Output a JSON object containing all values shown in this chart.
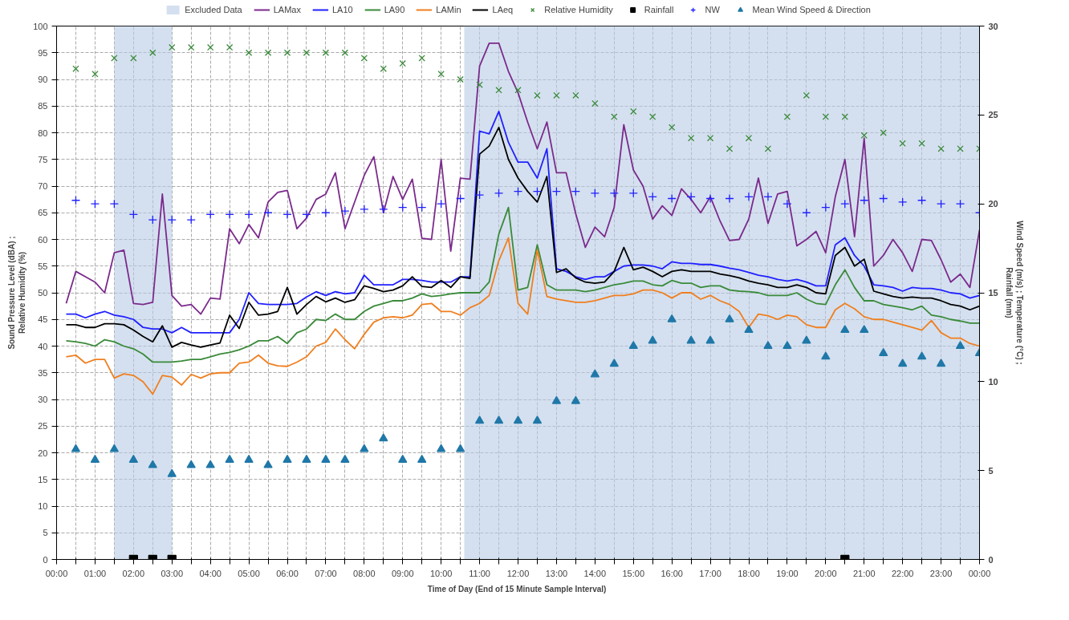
{
  "chart_data": {
    "type": "line",
    "xlabel": "Time of Day (End of 15 Minute  Sample Interval)",
    "ylabel": "Sound Pressure Level (dBA) ;\nRelative Humidity (%)",
    "y2label": "Wind Speed (m/s) ; Temperature (°C) ;\nRainfall (mm)",
    "xlim": [
      0,
      24
    ],
    "ylim": [
      0,
      100
    ],
    "y2lim": [
      0,
      30
    ],
    "xticks": [
      {
        "value": 0,
        "label": "00:00"
      },
      {
        "value": 0.5,
        "label": null
      },
      {
        "value": 1,
        "label": "01:00"
      },
      {
        "value": 1.5,
        "label": null
      },
      {
        "value": 2,
        "label": "02:00"
      },
      {
        "value": 2.5,
        "label": null
      },
      {
        "value": 3,
        "label": "03:00"
      },
      {
        "value": 3.5,
        "label": null
      },
      {
        "value": 4,
        "label": "04:00"
      },
      {
        "value": 4.5,
        "label": null
      },
      {
        "value": 5,
        "label": "05:00"
      },
      {
        "value": 5.5,
        "label": null
      },
      {
        "value": 6,
        "label": "06:00"
      },
      {
        "value": 6.5,
        "label": null
      },
      {
        "value": 7,
        "label": "07:00"
      },
      {
        "value": 7.5,
        "label": null
      },
      {
        "value": 8,
        "label": "08:00"
      },
      {
        "value": 8.5,
        "label": null
      },
      {
        "value": 9,
        "label": "09:00"
      },
      {
        "value": 9.5,
        "label": null
      },
      {
        "value": 10,
        "label": "10:00"
      },
      {
        "value": 10.5,
        "label": null
      },
      {
        "value": 11,
        "label": "11:00"
      },
      {
        "value": 11.5,
        "label": null
      },
      {
        "value": 12,
        "label": "12:00"
      },
      {
        "value": 12.5,
        "label": null
      },
      {
        "value": 13,
        "label": "13:00"
      },
      {
        "value": 13.5,
        "label": null
      },
      {
        "value": 14,
        "label": "14:00"
      },
      {
        "value": 14.5,
        "label": null
      },
      {
        "value": 15,
        "label": "15:00"
      },
      {
        "value": 15.5,
        "label": null
      },
      {
        "value": 16,
        "label": "16:00"
      },
      {
        "value": 16.5,
        "label": null
      },
      {
        "value": 17,
        "label": "17:00"
      },
      {
        "value": 17.5,
        "label": null
      },
      {
        "value": 18,
        "label": "18:00"
      },
      {
        "value": 18.5,
        "label": null
      },
      {
        "value": 19,
        "label": "19:00"
      },
      {
        "value": 19.5,
        "label": null
      },
      {
        "value": 20,
        "label": "20:00"
      },
      {
        "value": 20.5,
        "label": null
      },
      {
        "value": 21,
        "label": "21:00"
      },
      {
        "value": 21.5,
        "label": null
      },
      {
        "value": 22,
        "label": "22:00"
      },
      {
        "value": 22.5,
        "label": null
      },
      {
        "value": 23,
        "label": "23:00"
      },
      {
        "value": 23.5,
        "label": null
      },
      {
        "value": 24,
        "label": "00:00"
      }
    ],
    "yticks": [
      0,
      5,
      10,
      15,
      20,
      25,
      30,
      35,
      40,
      45,
      50,
      55,
      60,
      65,
      70,
      75,
      80,
      85,
      90,
      95,
      100
    ],
    "y2ticks": [
      0,
      5,
      10,
      15,
      20,
      25,
      30
    ],
    "grid": true,
    "legend": "top",
    "bands": [
      {
        "axis": "x",
        "from": 1.5,
        "to": 3.0,
        "label": "Excluded Data",
        "color": "#b8cce4"
      },
      {
        "axis": "x",
        "from": 10.6,
        "to": 24,
        "color": "#b8cce4"
      }
    ],
    "series": [
      {
        "name": "LAMax",
        "color": "#7b2a8c",
        "x": [
          0.25,
          0.5,
          0.75,
          1,
          1.25,
          1.5,
          1.75,
          2,
          2.25,
          2.5,
          2.75,
          3,
          3.25,
          3.5,
          3.75,
          4,
          4.25,
          4.5,
          4.75,
          5,
          5.25,
          5.5,
          5.75,
          6,
          6.25,
          6.5,
          6.75,
          7,
          7.25,
          7.5,
          7.75,
          8,
          8.25,
          8.5,
          8.75,
          9,
          9.25,
          9.5,
          9.75,
          10,
          10.25,
          10.5,
          10.75,
          11,
          11.25,
          11.5,
          11.75,
          12,
          12.25,
          12.5,
          12.75,
          13,
          13.25,
          13.5,
          13.75,
          14,
          14.25,
          14.5,
          14.75,
          15,
          15.25,
          15.5,
          15.75,
          16,
          16.25,
          16.5,
          16.75,
          17,
          17.25,
          17.5,
          17.75,
          18,
          18.25,
          18.5,
          18.75,
          19,
          19.25,
          19.5,
          19.75,
          20,
          20.25,
          20.5,
          20.75,
          21,
          21.25,
          21.5,
          21.75,
          22,
          22.25,
          22.5,
          22.75,
          23,
          23.25,
          23.5,
          23.75,
          24
        ],
        "values": [
          48,
          54,
          53,
          52,
          50,
          57.5,
          58,
          48,
          47.8,
          48.2,
          68.5,
          49.5,
          47.5,
          47.8,
          46,
          49,
          48.8,
          62,
          59.2,
          62.8,
          60.3,
          67,
          68.8,
          69.2,
          62,
          64,
          67.5,
          68.5,
          72.5,
          62,
          67,
          72,
          75.5,
          65,
          71.8,
          67.5,
          71.3,
          60.2,
          60,
          75,
          57.8,
          71.5,
          71.3,
          92.5,
          96.8,
          96.8,
          91.5,
          87.5,
          82,
          77,
          82,
          72.5,
          72.5,
          64.8,
          58.5,
          62.3,
          60.5,
          66,
          81.5,
          73,
          70,
          63.8,
          66.3,
          64.5,
          69.5,
          67.5,
          65,
          68,
          63.5,
          59.8,
          60,
          63.8,
          71.5,
          63,
          68.5,
          69,
          58.8,
          60,
          61.5,
          57.5,
          68,
          75,
          60.5,
          79,
          55,
          57,
          60,
          57.5,
          54,
          60,
          59.8,
          56.2,
          52,
          53.5,
          51,
          61.8
        ]
      },
      {
        "name": "LA10",
        "color": "#2020ff",
        "x": [
          0.25,
          0.5,
          0.75,
          1,
          1.25,
          1.5,
          1.75,
          2,
          2.25,
          2.5,
          2.75,
          3,
          3.25,
          3.5,
          3.75,
          4,
          4.25,
          4.5,
          4.75,
          5,
          5.25,
          5.5,
          5.75,
          6,
          6.25,
          6.5,
          6.75,
          7,
          7.25,
          7.5,
          7.75,
          8,
          8.25,
          8.5,
          8.75,
          9,
          9.25,
          9.5,
          9.75,
          10,
          10.25,
          10.5,
          10.75,
          11,
          11.25,
          11.5,
          11.75,
          12,
          12.25,
          12.5,
          12.75,
          13,
          13.25,
          13.5,
          13.75,
          14,
          14.25,
          14.5,
          14.75,
          15,
          15.25,
          15.5,
          15.75,
          16,
          16.25,
          16.5,
          16.75,
          17,
          17.25,
          17.5,
          17.75,
          18,
          18.25,
          18.5,
          18.75,
          19,
          19.25,
          19.5,
          19.75,
          20,
          20.25,
          20.5,
          20.75,
          21,
          21.25,
          21.5,
          21.75,
          22,
          22.25,
          22.5,
          22.75,
          23,
          23.25,
          23.5,
          23.75,
          24
        ],
        "values": [
          46,
          46,
          45.3,
          46,
          46.5,
          45.8,
          45.5,
          45,
          43.5,
          43.2,
          43.2,
          42.5,
          43.5,
          42.5,
          42.5,
          42.5,
          42.5,
          42.5,
          45,
          50,
          48,
          47.8,
          47.8,
          47.8,
          48,
          49.2,
          50.2,
          49.5,
          50.2,
          49.8,
          50,
          53.3,
          51.5,
          51.5,
          51.5,
          52.5,
          52.5,
          52.3,
          52,
          52,
          52,
          53,
          53,
          80.3,
          79.8,
          84,
          78.2,
          74.5,
          74.5,
          71.5,
          77,
          54.5,
          54,
          53,
          52.5,
          53,
          53,
          54,
          55,
          55.2,
          55.2,
          55,
          54.5,
          55.8,
          55.5,
          55.5,
          55.3,
          55.3,
          55,
          54.6,
          54.3,
          53.8,
          53.3,
          53,
          52.5,
          52.2,
          52.5,
          52,
          51.3,
          51.3,
          59,
          60.3,
          57,
          55,
          51.5,
          51.3,
          51,
          50.3,
          51,
          50.8,
          50.8,
          50.5,
          50,
          49.8,
          49,
          49.5
        ]
      },
      {
        "name": "LA90",
        "color": "#3a8a3a",
        "x": [
          0.25,
          0.5,
          0.75,
          1,
          1.25,
          1.5,
          1.75,
          2,
          2.25,
          2.5,
          2.75,
          3,
          3.25,
          3.5,
          3.75,
          4,
          4.25,
          4.5,
          4.75,
          5,
          5.25,
          5.5,
          5.75,
          6,
          6.25,
          6.5,
          6.75,
          7,
          7.25,
          7.5,
          7.75,
          8,
          8.25,
          8.5,
          8.75,
          9,
          9.25,
          9.5,
          9.75,
          10,
          10.25,
          10.5,
          10.75,
          11,
          11.25,
          11.5,
          11.75,
          12,
          12.25,
          12.5,
          12.75,
          13,
          13.25,
          13.5,
          13.75,
          14,
          14.25,
          14.5,
          14.75,
          15,
          15.25,
          15.5,
          15.75,
          16,
          16.25,
          16.5,
          16.75,
          17,
          17.25,
          17.5,
          17.75,
          18,
          18.25,
          18.5,
          18.75,
          19,
          19.25,
          19.5,
          19.75,
          20,
          20.25,
          20.5,
          20.75,
          21,
          21.25,
          21.5,
          21.75,
          22,
          22.25,
          22.5,
          22.75,
          23,
          23.25,
          23.5,
          23.75,
          24
        ],
        "values": [
          41,
          40.8,
          40.5,
          40,
          41.2,
          40.8,
          40,
          39.5,
          38.5,
          37,
          37,
          37,
          37.2,
          37.5,
          37.5,
          38,
          38.5,
          38.8,
          39.3,
          40,
          41,
          41,
          41.8,
          40.5,
          42.5,
          43.2,
          45,
          44.8,
          46,
          45,
          45,
          46.5,
          47.5,
          48,
          48.5,
          48.5,
          49,
          49.8,
          49.3,
          49.5,
          49.8,
          50,
          50,
          50,
          52,
          61,
          66,
          50.5,
          51,
          59,
          51.5,
          50.5,
          50.5,
          50.5,
          50.2,
          50.5,
          51,
          51.5,
          51.8,
          52.2,
          52.2,
          51.5,
          51.3,
          52.3,
          51.8,
          51.8,
          51,
          51.3,
          51.3,
          50.5,
          50.3,
          50.2,
          50,
          49.5,
          49.5,
          49.5,
          50,
          48.8,
          48,
          47.8,
          51.5,
          54.3,
          51,
          48.5,
          48.5,
          47.8,
          47.5,
          47.2,
          46.8,
          47.5,
          45.8,
          45.5,
          45,
          44.7,
          44.3,
          44.3
        ]
      },
      {
        "name": "LAMin",
        "color": "#f07f1f",
        "x": [
          0.25,
          0.5,
          0.75,
          1,
          1.25,
          1.5,
          1.75,
          2,
          2.25,
          2.5,
          2.75,
          3,
          3.25,
          3.5,
          3.75,
          4,
          4.25,
          4.5,
          4.75,
          5,
          5.25,
          5.5,
          5.75,
          6,
          6.25,
          6.5,
          6.75,
          7,
          7.25,
          7.5,
          7.75,
          8,
          8.25,
          8.5,
          8.75,
          9,
          9.25,
          9.5,
          9.75,
          10,
          10.25,
          10.5,
          10.75,
          11,
          11.25,
          11.5,
          11.75,
          12,
          12.25,
          12.5,
          12.75,
          13,
          13.25,
          13.5,
          13.75,
          14,
          14.25,
          14.5,
          14.75,
          15,
          15.25,
          15.5,
          15.75,
          16,
          16.25,
          16.5,
          16.75,
          17,
          17.25,
          17.5,
          17.75,
          18,
          18.25,
          18.5,
          18.75,
          19,
          19.25,
          19.5,
          19.75,
          20,
          20.25,
          20.5,
          20.75,
          21,
          21.25,
          21.5,
          21.75,
          22,
          22.25,
          22.5,
          22.75,
          23,
          23.25,
          23.5,
          23.75,
          24
        ],
        "values": [
          38,
          38.3,
          36.8,
          37.5,
          37.5,
          34,
          34.8,
          34.5,
          33.3,
          31,
          34.5,
          34.2,
          32.7,
          34.7,
          34,
          34.8,
          35,
          35,
          36.8,
          37,
          38.3,
          36.8,
          36.3,
          36.2,
          37,
          38,
          40,
          40.7,
          43.2,
          41.2,
          39.5,
          42.2,
          44.5,
          45.3,
          45.5,
          45.3,
          45.8,
          47.8,
          48,
          46.5,
          46.5,
          45.8,
          47.2,
          48,
          49.5,
          56,
          60.3,
          48,
          46,
          58,
          49.3,
          48.8,
          48.5,
          48.2,
          48.2,
          48.5,
          49,
          49.5,
          49.5,
          49.8,
          50.5,
          50.5,
          50,
          49,
          50,
          50,
          48.8,
          49.5,
          48.5,
          47.8,
          46.5,
          43.5,
          46,
          45.7,
          45,
          45.8,
          45.5,
          44,
          43.5,
          43.5,
          46.8,
          48,
          47,
          45.5,
          45,
          45,
          44.5,
          44,
          43.5,
          43,
          44.8,
          42.5,
          41.5,
          41.5,
          40.5,
          40
        ]
      },
      {
        "name": "LAeq",
        "color": "#000000",
        "x": [
          0.25,
          0.5,
          0.75,
          1,
          1.25,
          1.5,
          1.75,
          2,
          2.25,
          2.5,
          2.75,
          3,
          3.25,
          3.5,
          3.75,
          4,
          4.25,
          4.5,
          4.75,
          5,
          5.25,
          5.5,
          5.75,
          6,
          6.25,
          6.5,
          6.75,
          7,
          7.25,
          7.5,
          7.75,
          8,
          8.25,
          8.5,
          8.75,
          9,
          9.25,
          9.5,
          9.75,
          10,
          10.25,
          10.5,
          10.75,
          11,
          11.25,
          11.5,
          11.75,
          12,
          12.25,
          12.5,
          12.75,
          13,
          13.25,
          13.5,
          13.75,
          14,
          14.25,
          14.5,
          14.75,
          15,
          15.25,
          15.5,
          15.75,
          16,
          16.25,
          16.5,
          16.75,
          17,
          17.25,
          17.5,
          17.75,
          18,
          18.25,
          18.5,
          18.75,
          19,
          19.25,
          19.5,
          19.75,
          20,
          20.25,
          20.5,
          20.75,
          21,
          21.25,
          21.5,
          21.75,
          22,
          22.25,
          22.5,
          22.75,
          23,
          23.25,
          23.5,
          23.75,
          24
        ],
        "values": [
          44,
          44,
          43.5,
          43.5,
          44.2,
          44.2,
          44,
          43,
          41.8,
          40.8,
          43.8,
          39.8,
          40.7,
          40.2,
          39.8,
          40.2,
          40.6,
          45.8,
          43.3,
          48.2,
          45.8,
          46,
          46.5,
          51,
          46,
          47.8,
          49.3,
          48.3,
          49,
          48.2,
          48.7,
          51.3,
          50.8,
          50.2,
          50.5,
          51.3,
          53,
          51.2,
          51,
          52.3,
          51,
          53,
          52.7,
          76,
          77.5,
          81,
          75,
          71.5,
          69,
          67,
          71.8,
          53.8,
          54.5,
          52.8,
          52,
          51.8,
          52,
          54,
          58.5,
          54.3,
          54.8,
          54,
          53,
          54,
          54.3,
          54,
          54,
          54,
          53.5,
          53.2,
          52.8,
          52.2,
          51.8,
          51.5,
          51,
          51,
          51.5,
          51,
          50,
          49.8,
          57,
          58.5,
          55,
          56.3,
          50.3,
          49.8,
          49.3,
          49,
          49.2,
          49,
          49,
          48.5,
          47.8,
          47.5,
          46.8,
          47.5
        ]
      },
      {
        "name": "Relative Humidity",
        "type": "scatter",
        "marker": "cross",
        "color": "#3a8a3a",
        "x": [
          0.5,
          1,
          1.5,
          2,
          2.5,
          3,
          3.5,
          4,
          4.5,
          5,
          5.5,
          6,
          6.5,
          7,
          7.5,
          8,
          8.5,
          9,
          9.5,
          10,
          10.5,
          11,
          11.5,
          12,
          12.5,
          13,
          13.5,
          14,
          14.5,
          15,
          15.5,
          16,
          16.5,
          17,
          17.5,
          18,
          18.5,
          19,
          19.5,
          20,
          20.5,
          21,
          21.5,
          22,
          22.5,
          23,
          23.5,
          24
        ],
        "values": [
          92,
          91,
          94,
          94,
          95,
          96,
          96,
          96,
          96,
          95,
          95,
          95,
          95,
          95,
          95,
          94,
          92,
          93,
          94,
          91,
          90,
          89,
          88,
          88,
          87,
          87,
          87,
          85.5,
          83,
          84,
          83,
          81,
          79,
          79,
          77,
          79,
          77,
          83,
          87,
          83,
          83,
          79.5,
          80,
          78,
          78,
          77,
          77,
          77
        ]
      },
      {
        "name": "Rainfall",
        "type": "scatter",
        "marker": "square",
        "axis": "y2",
        "color": "#000000",
        "x": [
          2,
          2.5,
          3,
          20.5
        ],
        "values": [
          0,
          0,
          0,
          0
        ]
      },
      {
        "name": "NW",
        "type": "scatter",
        "marker": "plus",
        "axis": "y2",
        "color": "#2020ff",
        "x": [
          0.5,
          1,
          1.5,
          2,
          2.5,
          3,
          3.5,
          4,
          4.5,
          5,
          5.5,
          6,
          6.5,
          7,
          7.5,
          8,
          8.5,
          9,
          9.5,
          10,
          10.5,
          11,
          11.5,
          12,
          12.5,
          13,
          13.5,
          14,
          14.5,
          15,
          15.5,
          16,
          16.5,
          17,
          17.5,
          18,
          18.5,
          19,
          19.5,
          20,
          20.5,
          21,
          21.5,
          22,
          22.5,
          23,
          23.5,
          24
        ],
        "values": [
          20.2,
          20,
          20,
          19.4,
          19.1,
          19.1,
          19.1,
          19.4,
          19.4,
          19.4,
          19.5,
          19.4,
          19.4,
          19.5,
          19.6,
          19.7,
          19.7,
          19.8,
          19.8,
          20,
          20.3,
          20.5,
          20.6,
          20.7,
          20.7,
          20.7,
          20.7,
          20.6,
          20.6,
          20.6,
          20.4,
          20.3,
          20.4,
          20.3,
          20.3,
          20.4,
          20.4,
          20,
          19.5,
          19.8,
          20,
          20.2,
          20.3,
          20.1,
          20.2,
          20,
          20,
          19.5
        ]
      },
      {
        "name": "Mean Wind Speed & Direction",
        "type": "scatter",
        "marker": "triangle",
        "axis": "y2",
        "color": "#1f78a8",
        "x": [
          0.5,
          1,
          1.5,
          2,
          2.5,
          3,
          3.5,
          4,
          4.5,
          5,
          5.5,
          6,
          6.5,
          7,
          7.5,
          8,
          8.5,
          9,
          9.5,
          10,
          10.5,
          11,
          11.5,
          12,
          12.5,
          13,
          13.5,
          14,
          14.5,
          15,
          15.5,
          16,
          16.5,
          17,
          17.5,
          18,
          18.5,
          19,
          19.5,
          20,
          20.5,
          21,
          21.5,
          22,
          22.5,
          23,
          23.5,
          24
        ],
        "values": [
          6.2,
          5.6,
          6.2,
          5.6,
          5.3,
          4.8,
          5.3,
          5.3,
          5.6,
          5.6,
          5.3,
          5.6,
          5.6,
          5.6,
          5.6,
          6.2,
          6.8,
          5.6,
          5.6,
          6.2,
          6.2,
          7.8,
          7.8,
          7.8,
          7.8,
          8.9,
          8.9,
          10.4,
          11,
          12,
          12.3,
          13.5,
          12.3,
          12.3,
          13.5,
          12.9,
          12,
          12,
          12.3,
          11.4,
          12.9,
          12.9,
          11.6,
          11,
          11.4,
          11,
          12,
          11.6
        ]
      }
    ]
  }
}
